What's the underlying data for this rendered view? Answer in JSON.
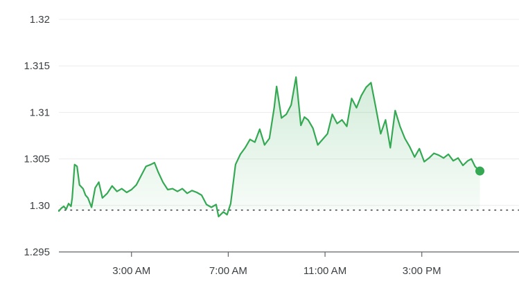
{
  "chart_data": {
    "type": "area",
    "title": "",
    "xlabel": "",
    "ylabel": "",
    "colors": {
      "line": "#34a853",
      "grid": "#ececec",
      "axis": "#5f6368",
      "reference": "#3c4043"
    },
    "y_ticks": [
      {
        "value": 1.32,
        "label": "1.32"
      },
      {
        "value": 1.315,
        "label": "1.315"
      },
      {
        "value": 1.31,
        "label": "1.31"
      },
      {
        "value": 1.305,
        "label": "1.305"
      },
      {
        "value": 1.3,
        "label": "1.30"
      },
      {
        "value": 1.295,
        "label": "1.295"
      }
    ],
    "x_ticks": [
      {
        "hour": 3,
        "label": "3:00 AM"
      },
      {
        "hour": 7,
        "label": "7:00 AM"
      },
      {
        "hour": 11,
        "label": "11:00 AM"
      },
      {
        "hour": 15,
        "label": "3:00 PM"
      }
    ],
    "ylim": [
      1.295,
      1.32
    ],
    "xlim_hours": [
      0,
      17.7
    ],
    "reference_line": 1.2995,
    "grid": true,
    "series": [
      {
        "x_hours": [
          0.0,
          0.1,
          0.2,
          0.3,
          0.4,
          0.5,
          0.55,
          0.65,
          0.75,
          0.85,
          1.0,
          1.1,
          1.2,
          1.35,
          1.5,
          1.65,
          1.8,
          2.0,
          2.2,
          2.4,
          2.6,
          2.8,
          3.0,
          3.2,
          3.4,
          3.6,
          3.8,
          3.95,
          4.1,
          4.3,
          4.5,
          4.7,
          4.9,
          5.1,
          5.3,
          5.5,
          5.7,
          5.9,
          6.1,
          6.3,
          6.5,
          6.6,
          6.8,
          6.95,
          7.1,
          7.3,
          7.5,
          7.7,
          7.9,
          8.1,
          8.3,
          8.5,
          8.7,
          8.9,
          9.0,
          9.2,
          9.4,
          9.6,
          9.8,
          10.0,
          10.15,
          10.3,
          10.5,
          10.7,
          10.9,
          11.1,
          11.3,
          11.5,
          11.7,
          11.9,
          12.1,
          12.3,
          12.5,
          12.7,
          12.9,
          13.1,
          13.3,
          13.5,
          13.7,
          13.9,
          14.1,
          14.3,
          14.5,
          14.7,
          14.9,
          15.1,
          15.3,
          15.5,
          15.7,
          15.9,
          16.1,
          16.3,
          16.5,
          16.7,
          16.9,
          17.05,
          17.2,
          17.4
        ],
        "values": [
          1.2994,
          1.2997,
          1.2999,
          1.2996,
          1.3002,
          1.2999,
          1.3008,
          1.3044,
          1.3042,
          1.3022,
          1.3018,
          1.3011,
          1.3008,
          1.2998,
          1.3019,
          1.3025,
          1.3008,
          1.3013,
          1.3021,
          1.3015,
          1.3018,
          1.3014,
          1.3017,
          1.3022,
          1.3032,
          1.3042,
          1.3044,
          1.3046,
          1.3036,
          1.3025,
          1.3017,
          1.3018,
          1.3015,
          1.3018,
          1.3013,
          1.3016,
          1.3014,
          1.3011,
          1.3001,
          1.2998,
          1.3001,
          1.2988,
          1.2993,
          1.299,
          1.3002,
          1.3044,
          1.3055,
          1.3062,
          1.3071,
          1.3068,
          1.3082,
          1.3065,
          1.3072,
          1.3105,
          1.3128,
          1.3094,
          1.3098,
          1.3108,
          1.3138,
          1.3086,
          1.3095,
          1.3092,
          1.3083,
          1.3065,
          1.3071,
          1.3077,
          1.3098,
          1.3088,
          1.3092,
          1.3085,
          1.3115,
          1.3105,
          1.3118,
          1.3127,
          1.3132,
          1.3105,
          1.3077,
          1.3092,
          1.3062,
          1.3102,
          1.3085,
          1.3072,
          1.3063,
          1.3052,
          1.3061,
          1.3047,
          1.3051,
          1.3056,
          1.3054,
          1.3051,
          1.3055,
          1.3048,
          1.3051,
          1.3043,
          1.3048,
          1.305,
          1.3042,
          1.3037
        ]
      }
    ]
  }
}
